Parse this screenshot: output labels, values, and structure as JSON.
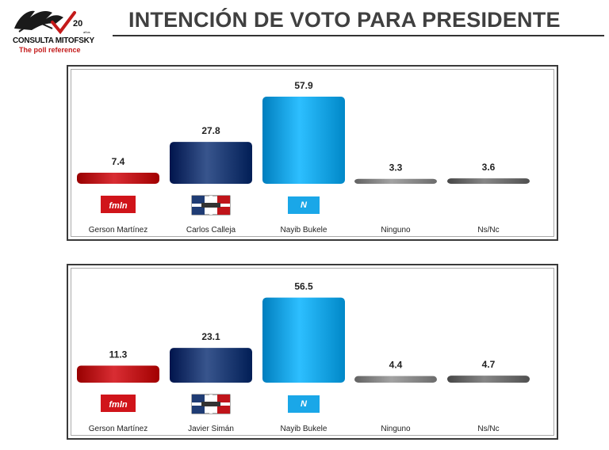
{
  "header": {
    "title": "INTENCIÓN DE VOTO PARA PRESIDENTE",
    "logo_brand": "CONSULTA MITOFSKY",
    "logo_tagline": "The poll reference",
    "logo_badge": "20",
    "logo_badge_sub": "años"
  },
  "chart_data": [
    {
      "type": "bar",
      "categories": [
        "Gerson Martínez",
        "Carlos Calleja",
        "Nayib Bukele",
        "Ninguno",
        "Ns/Nc"
      ],
      "values": [
        7.4,
        27.8,
        57.9,
        3.3,
        3.6
      ],
      "value_labels": [
        "7.4",
        "27.8",
        "57.9",
        "3.3",
        "3.6"
      ],
      "colors": [
        "#c0141a",
        "#1f3c74",
        "#14a6e6",
        "#8a8a8a",
        "#6e6e6e"
      ],
      "party_logos": [
        "fmln",
        "arena",
        "nuevas-ideas",
        "",
        ""
      ],
      "party_logo_texts": [
        "fmln",
        "",
        "",
        "",
        ""
      ],
      "ylim": [
        0,
        60
      ],
      "grid": false,
      "legend": "none"
    },
    {
      "type": "bar",
      "categories": [
        "Gerson Martínez",
        "Javier Simán",
        "Nayib Bukele",
        "Ninguno",
        "Ns/Nc"
      ],
      "values": [
        11.3,
        23.1,
        56.5,
        4.4,
        4.7
      ],
      "value_labels": [
        "11.3",
        "23.1",
        "56.5",
        "4.4",
        "4.7"
      ],
      "colors": [
        "#c0141a",
        "#1f3c74",
        "#14a6e6",
        "#8a8a8a",
        "#6e6e6e"
      ],
      "party_logos": [
        "fmln",
        "arena",
        "nuevas-ideas",
        "",
        ""
      ],
      "party_logo_texts": [
        "fmln",
        "",
        "",
        "",
        ""
      ],
      "ylim": [
        0,
        60
      ],
      "grid": false,
      "legend": "none"
    }
  ]
}
